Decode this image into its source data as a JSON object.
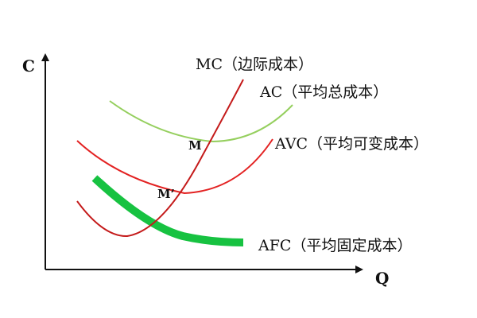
{
  "axes": {
    "y_label": "C",
    "x_label": "Q"
  },
  "curves": [
    {
      "id": "mc",
      "label": "MC（边际成本）",
      "color": "#c41a1a"
    },
    {
      "id": "ac",
      "label": "AC（平均总成本）",
      "color": "#95cf5e"
    },
    {
      "id": "avc",
      "label": "AVC（平均可变成本）",
      "color": "#e32222"
    },
    {
      "id": "afc",
      "label": "AFC（平均固定成本）",
      "color": "#17c241"
    }
  ],
  "points": {
    "m": "M",
    "m_prime": "M’"
  }
}
